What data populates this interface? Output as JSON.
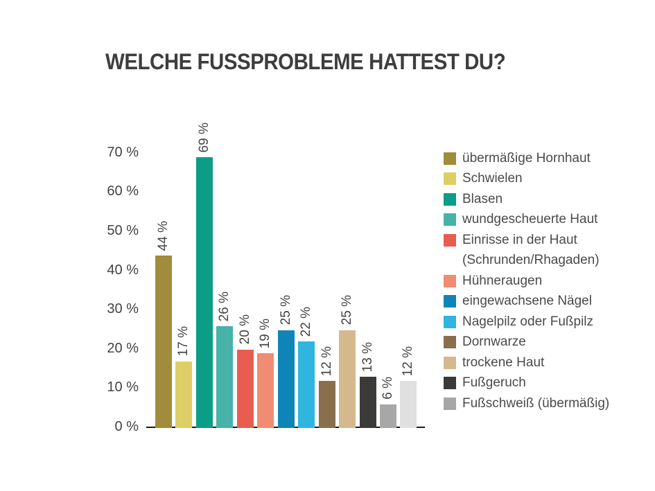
{
  "title": "WELCHE FUSSPROBLEME HATTEST DU?",
  "colors": {
    "background": "#ffffff",
    "title_text": "#3d3d3d",
    "axis_text": "#434343",
    "legend_text": "#4a4a4a",
    "axis_line": "#1a1a1a"
  },
  "chart_data": {
    "type": "bar",
    "title": "WELCHE FUSSPROBLEME HATTEST DU?",
    "xlabel": "",
    "ylabel": "",
    "ylim": [
      0,
      70
    ],
    "grid": false,
    "legend_position": "right",
    "yticks": [
      "0 %",
      "10 %",
      "20 %",
      "30 %",
      "40 %",
      "50 %",
      "60 %",
      "70 %"
    ],
    "bars": [
      {
        "label": "übermäßige Hornhaut",
        "value": 44,
        "value_label": "44 %",
        "color": "#a08c3a"
      },
      {
        "label": "Schwielen",
        "value": 17,
        "value_label": "17 %",
        "color": "#ddcf66"
      },
      {
        "label": "Blasen",
        "value": 69,
        "value_label": "69 %",
        "color": "#0b9d86"
      },
      {
        "label": "wundgescheuerte Haut",
        "value": 26,
        "value_label": "26 %",
        "color": "#46b2a8"
      },
      {
        "label": "Einrisse in der Haut (Schrunden/Rhagaden)",
        "value": 20,
        "value_label": "20 %",
        "color": "#e95c50"
      },
      {
        "label": "Hühneraugen",
        "value": 19,
        "value_label": "19 %",
        "color": "#f08c72"
      },
      {
        "label": "eingewachsene Nägel",
        "value": 25,
        "value_label": "25 %",
        "color": "#0f85b7"
      },
      {
        "label": "Nagelpilz oder Fußpilz",
        "value": 22,
        "value_label": "22 %",
        "color": "#2fb5e0"
      },
      {
        "label": "Dornwarze",
        "value": 12,
        "value_label": "12 %",
        "color": "#8a6f4d"
      },
      {
        "label": "trockene Haut",
        "value": 25,
        "value_label": "25 %",
        "color": "#d4b88e"
      },
      {
        "label": "Fußgeruch",
        "value": 13,
        "value_label": "13 %",
        "color": "#3a3a38"
      },
      {
        "label": "Fußschweiß (übermäßig)",
        "value": 6,
        "value_label": "6 %",
        "color": "#a7a7a7"
      },
      {
        "label": "",
        "value": 12,
        "value_label": "12 %",
        "color": "#e0e0e0"
      }
    ],
    "legend": [
      {
        "lines": [
          "übermäßige Hornhaut"
        ],
        "color": "#a08c3a"
      },
      {
        "lines": [
          "Schwielen"
        ],
        "color": "#ddcf66"
      },
      {
        "lines": [
          "Blasen"
        ],
        "color": "#0b9d86"
      },
      {
        "lines": [
          "wundgescheuerte Haut"
        ],
        "color": "#46b2a8"
      },
      {
        "lines": [
          "Einrisse in der Haut",
          "(Schrunden/Rhagaden)"
        ],
        "color": "#e95c50"
      },
      {
        "lines": [
          "Hühneraugen"
        ],
        "color": "#f08c72"
      },
      {
        "lines": [
          "eingewachsene Nägel"
        ],
        "color": "#0f85b7"
      },
      {
        "lines": [
          "Nagelpilz oder Fußpilz"
        ],
        "color": "#2fb5e0"
      },
      {
        "lines": [
          "Dornwarze"
        ],
        "color": "#8a6f4d"
      },
      {
        "lines": [
          "trockene Haut"
        ],
        "color": "#d4b88e"
      },
      {
        "lines": [
          "Fußgeruch"
        ],
        "color": "#3a3a38"
      },
      {
        "lines": [
          "Fußschweiß (übermäßig)"
        ],
        "color": "#a7a7a7"
      }
    ]
  }
}
